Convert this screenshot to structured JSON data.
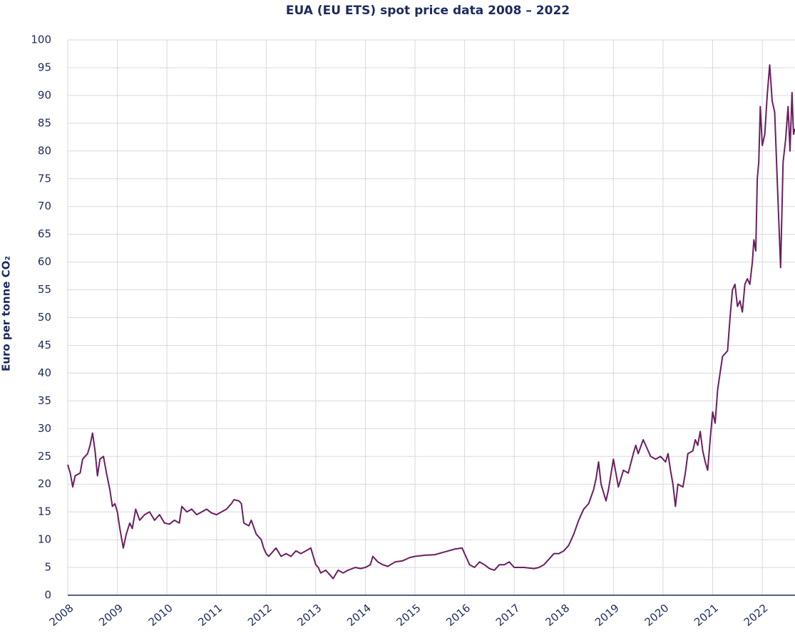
{
  "chart_data": {
    "type": "line",
    "title": "EUA (EU ETS) spot price data 2008 – 2022",
    "y_label": "Euro per tonne CO₂",
    "xlim": [
      2008,
      2022.66
    ],
    "xticks": [
      2008,
      2009,
      2010,
      2011,
      2012,
      2013,
      2014,
      2015,
      2016,
      2017,
      2018,
      2019,
      2020,
      2021,
      2022
    ],
    "ylim": [
      0,
      100
    ],
    "yticks": [
      0,
      5,
      10,
      15,
      20,
      25,
      30,
      35,
      40,
      45,
      50,
      55,
      60,
      65,
      70,
      75,
      80,
      85,
      90,
      95,
      100
    ],
    "grid": true,
    "series": [
      {
        "color": "#6b1f5f",
        "x": [
          2008.0,
          2008.05,
          2008.1,
          2008.15,
          2008.25,
          2008.3,
          2008.4,
          2008.45,
          2008.5,
          2008.55,
          2008.6,
          2008.65,
          2008.72,
          2008.78,
          2008.85,
          2008.9,
          2008.95,
          2009.0,
          2009.05,
          2009.12,
          2009.18,
          2009.25,
          2009.3,
          2009.37,
          2009.45,
          2009.55,
          2009.65,
          2009.75,
          2009.85,
          2009.95,
          2010.05,
          2010.15,
          2010.25,
          2010.3,
          2010.4,
          2010.5,
          2010.6,
          2010.7,
          2010.8,
          2010.9,
          2011.0,
          2011.1,
          2011.2,
          2011.3,
          2011.35,
          2011.45,
          2011.5,
          2011.55,
          2011.65,
          2011.7,
          2011.8,
          2011.9,
          2011.95,
          2012.0,
          2012.05,
          2012.15,
          2012.2,
          2012.3,
          2012.4,
          2012.5,
          2012.6,
          2012.7,
          2012.8,
          2012.9,
          2012.95,
          2013.0,
          2013.05,
          2013.1,
          2013.2,
          2013.3,
          2013.35,
          2013.45,
          2013.55,
          2013.65,
          2013.8,
          2013.9,
          2014.0,
          2014.1,
          2014.15,
          2014.25,
          2014.35,
          2014.45,
          2014.6,
          2014.75,
          2014.9,
          2015.0,
          2015.2,
          2015.4,
          2015.6,
          2015.8,
          2015.95,
          2016.05,
          2016.1,
          2016.2,
          2016.3,
          2016.4,
          2016.5,
          2016.6,
          2016.7,
          2016.8,
          2016.9,
          2017.0,
          2017.2,
          2017.4,
          2017.5,
          2017.6,
          2017.7,
          2017.8,
          2017.9,
          2018.0,
          2018.1,
          2018.2,
          2018.3,
          2018.4,
          2018.5,
          2018.6,
          2018.65,
          2018.7,
          2018.75,
          2018.85,
          2018.9,
          2019.0,
          2019.05,
          2019.1,
          2019.2,
          2019.3,
          2019.4,
          2019.45,
          2019.5,
          2019.6,
          2019.7,
          2019.75,
          2019.85,
          2019.95,
          2020.05,
          2020.1,
          2020.15,
          2020.2,
          2020.25,
          2020.3,
          2020.4,
          2020.45,
          2020.5,
          2020.6,
          2020.65,
          2020.7,
          2020.75,
          2020.8,
          2020.85,
          2020.9,
          2020.95,
          2021.0,
          2021.05,
          2021.1,
          2021.15,
          2021.2,
          2021.3,
          2021.35,
          2021.4,
          2021.45,
          2021.5,
          2021.55,
          2021.6,
          2021.65,
          2021.7,
          2021.75,
          2021.8,
          2021.83,
          2021.87,
          2021.9,
          2021.93,
          2021.96,
          2022.0,
          2022.05,
          2022.1,
          2022.15,
          2022.2,
          2022.25,
          2022.3,
          2022.37,
          2022.42,
          2022.47,
          2022.52,
          2022.56,
          2022.6,
          2022.63,
          2022.66
        ],
        "values": [
          23.5,
          22,
          19.5,
          21.5,
          22,
          24.5,
          25.5,
          27,
          29.2,
          26,
          21.5,
          24.5,
          25,
          22,
          19,
          16,
          16.5,
          15,
          12,
          8.5,
          11,
          13,
          12,
          15.5,
          13.5,
          14.5,
          15,
          13.5,
          14.5,
          13,
          12.8,
          13.5,
          13,
          16,
          15,
          15.5,
          14.5,
          15,
          15.5,
          14.8,
          14.5,
          15,
          15.5,
          16.5,
          17.2,
          17,
          16.5,
          13,
          12.5,
          13.5,
          11,
          10,
          8.5,
          7.5,
          7,
          8,
          8.5,
          7,
          7.5,
          7,
          8,
          7.5,
          8,
          8.5,
          7,
          5.5,
          5,
          4,
          4.5,
          3.5,
          3,
          4.5,
          4,
          4.5,
          5,
          4.8,
          5,
          5.5,
          7,
          6,
          5.5,
          5.2,
          6,
          6.2,
          6.8,
          7,
          7.2,
          7.3,
          7.8,
          8.3,
          8.5,
          6.5,
          5.5,
          5,
          6,
          5.5,
          4.8,
          4.5,
          5.5,
          5.5,
          6,
          5,
          5,
          4.8,
          5,
          5.5,
          6.5,
          7.5,
          7.5,
          8,
          9,
          11,
          13.5,
          15.5,
          16.5,
          19,
          21,
          24,
          20,
          17,
          19,
          24.5,
          22,
          19.5,
          22.5,
          22,
          25.5,
          27,
          25.5,
          28,
          26,
          25,
          24.5,
          25,
          24,
          25.5,
          22.5,
          20,
          16,
          20,
          19.5,
          22,
          25.5,
          26,
          28,
          27,
          29.5,
          26,
          24,
          22.5,
          28,
          33,
          31,
          37,
          40,
          43,
          44,
          50,
          55,
          56,
          52,
          53,
          51,
          56,
          57,
          56,
          60,
          64,
          62,
          75,
          78,
          88,
          81,
          83,
          90,
          95.5,
          89,
          87,
          75,
          59,
          78,
          82,
          88,
          80,
          90.5,
          83,
          84
        ]
      }
    ]
  }
}
